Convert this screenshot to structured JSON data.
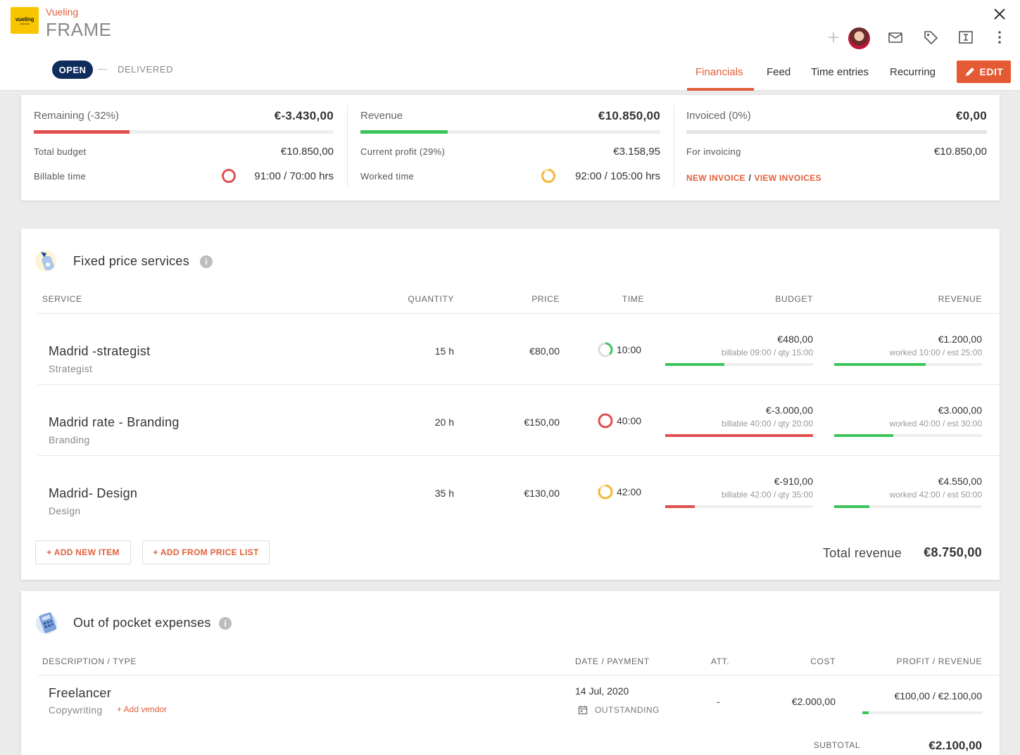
{
  "header": {
    "logo_text": "vueling",
    "logo_sub": "AIRLINES",
    "client": "Vueling",
    "project": "FRAME",
    "status_open": "OPEN",
    "status_delivered": "DELIVERED",
    "tabs": [
      {
        "label": "Financials"
      },
      {
        "label": "Feed"
      },
      {
        "label": "Time entries"
      },
      {
        "label": "Recurring"
      }
    ],
    "edit_label": "EDIT"
  },
  "summary": {
    "remaining": {
      "label": "Remaining (-32%)",
      "value": "€-3.430,00",
      "progress": 0.32,
      "color": "#e05050"
    },
    "total_budget": {
      "label": "Total budget",
      "value": "€10.850,00"
    },
    "billable_time": {
      "label": "Billable time",
      "value": "91:00 / 70:00 hrs"
    },
    "revenue": {
      "label": "Revenue",
      "value": "€10.850,00",
      "progress": 0.29,
      "color": "#3cc45c"
    },
    "current_profit": {
      "label": "Current profit (29%)",
      "value": "€3.158,95"
    },
    "worked_time": {
      "label": "Worked time",
      "value": "92:00 / 105:00 hrs"
    },
    "invoiced": {
      "label": "Invoiced (0%)",
      "value": "€0,00",
      "progress": 0.0
    },
    "for_invoicing": {
      "label": "For invoicing",
      "value": "€10.850,00"
    },
    "new_invoice": "NEW INVOICE",
    "separator": "/",
    "view_invoices": "VIEW INVOICES"
  },
  "fixed": {
    "title": "Fixed price services",
    "columns": {
      "service": "SERVICE",
      "quantity": "QUANTITY",
      "price": "PRICE",
      "time": "TIME",
      "budget": "BUDGET",
      "revenue": "REVENUE"
    },
    "rows": [
      {
        "title": "Madrid -strategist",
        "sub": "Strategist",
        "qty": "15 h",
        "price": "€80,00",
        "time": "10:00",
        "budget": "€480,00",
        "budget_meta": "billable 09:00 / qty 15:00",
        "budget_progress": 0.4,
        "budget_color": "#3cc45c",
        "revenue": "€1.200,00",
        "revenue_meta": "worked 10:00 / est 25:00",
        "revenue_progress": 0.62,
        "revenue_color": "#3cc45c"
      },
      {
        "title": "Madrid rate - Branding",
        "sub": "Branding",
        "qty": "20 h",
        "price": "€150,00",
        "time": "40:00",
        "budget": "€-3.000,00",
        "budget_meta": "billable 40:00 / qty 20:00",
        "budget_progress": 1.0,
        "budget_color": "#e05050",
        "revenue": "€3.000,00",
        "revenue_meta": "worked 40:00 / est 30:00",
        "revenue_progress": 0.4,
        "revenue_color": "#3cc45c"
      },
      {
        "title": "Madrid- Design",
        "sub": "Design",
        "qty": "35 h",
        "price": "€130,00",
        "time": "42:00",
        "budget": "€-910,00",
        "budget_meta": "billable 42:00 / qty 35:00",
        "budget_progress": 0.2,
        "budget_color": "#e05050",
        "revenue": "€4.550,00",
        "revenue_meta": "worked 42:00 / est 50:00",
        "revenue_progress": 0.24,
        "revenue_color": "#3cc45c"
      }
    ],
    "add_new_item": "+ ADD NEW ITEM",
    "add_from_price_list": "+ ADD FROM PRICE LIST",
    "total_revenue_label": "Total revenue",
    "total_revenue_value": "€8.750,00"
  },
  "expenses": {
    "title": "Out of pocket expenses",
    "columns": {
      "description": "DESCRIPTION / TYPE",
      "date": "DATE / PAYMENT",
      "att": "ATT.",
      "cost": "COST",
      "profit": "PROFIT / REVENUE"
    },
    "rows": [
      {
        "title": "Freelancer",
        "sub": "Copywriting",
        "add_vendor": "+ Add vendor",
        "date": "14 Jul, 2020",
        "payment": "OUTSTANDING",
        "att": "-",
        "cost": "€2.000,00",
        "profit": "€100,00 / €2.100,00",
        "profit_progress": 0.05
      }
    ],
    "subtotal_label": "SUBTOTAL",
    "subtotal_value": "€2.100,00"
  }
}
